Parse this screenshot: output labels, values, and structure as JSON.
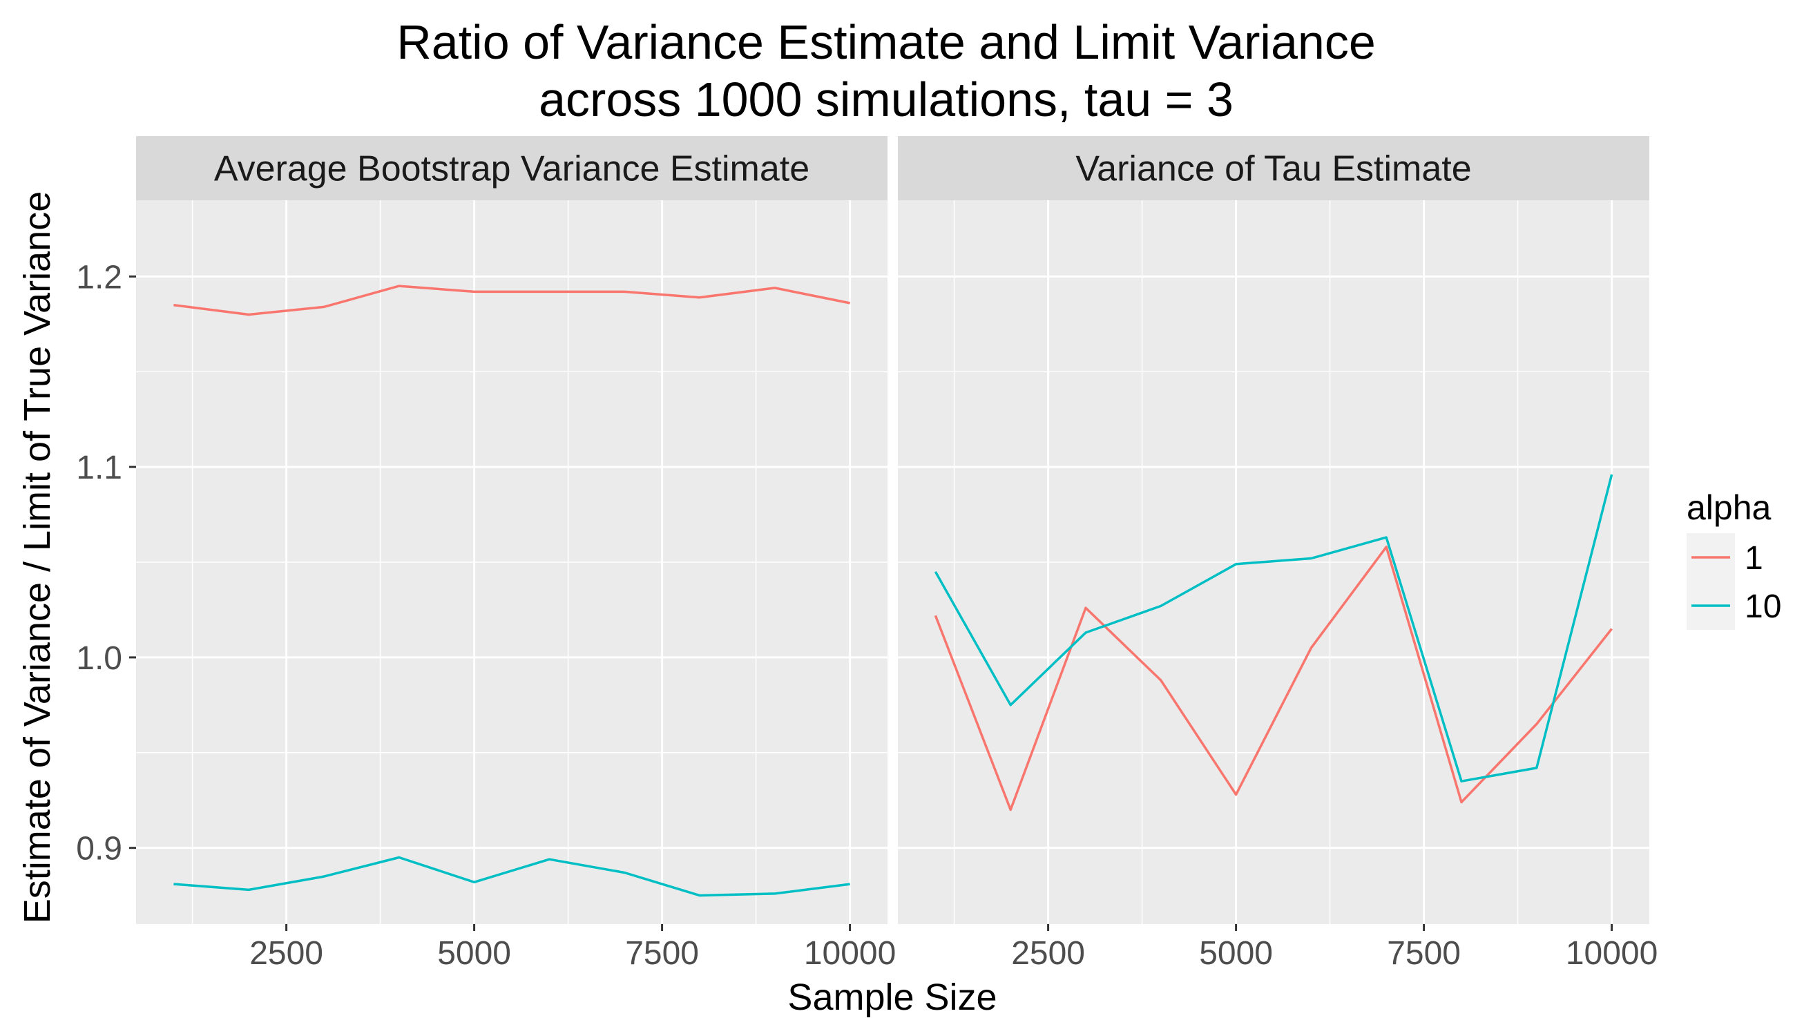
{
  "chart_data": {
    "type": "line",
    "title_line1": "Ratio of Variance Estimate and Limit Variance",
    "title_line2": "across 1000 simulations, tau = 3",
    "xlabel": "Sample Size",
    "ylabel": "Estimate of Variance / Limit of True Variance",
    "x_ticks": [
      2500,
      5000,
      7500,
      10000
    ],
    "x_tick_labels": [
      "2500",
      "5000",
      "7500",
      "10000"
    ],
    "y_ticks": [
      0.9,
      1.0,
      1.1,
      1.2
    ],
    "y_tick_labels": [
      "0.9",
      "1.0",
      "1.1",
      "1.2"
    ],
    "xlim": [
      500,
      10500
    ],
    "ylim": [
      0.86,
      1.24
    ],
    "grid": true,
    "legend": {
      "title": "alpha",
      "position": "right",
      "entries": [
        {
          "label": "1",
          "color": "#F8766D"
        },
        {
          "label": "10",
          "color": "#00BFC4"
        }
      ]
    },
    "colors": {
      "panel_bg": "#EBEBEB",
      "strip_bg": "#D9D9D9",
      "grid": "#FFFFFF"
    },
    "facets": [
      {
        "label": "Average Bootstrap Variance Estimate",
        "series": [
          {
            "name": "1",
            "x": [
              1000,
              2000,
              3000,
              4000,
              5000,
              6000,
              7000,
              8000,
              9000,
              10000
            ],
            "y": [
              1.185,
              1.18,
              1.184,
              1.195,
              1.192,
              1.192,
              1.192,
              1.189,
              1.194,
              1.186
            ]
          },
          {
            "name": "10",
            "x": [
              1000,
              2000,
              3000,
              4000,
              5000,
              6000,
              7000,
              8000,
              9000,
              10000
            ],
            "y": [
              0.881,
              0.878,
              0.885,
              0.895,
              0.882,
              0.894,
              0.887,
              0.875,
              0.876,
              0.881
            ]
          }
        ]
      },
      {
        "label": "Variance of Tau Estimate",
        "series": [
          {
            "name": "1",
            "x": [
              1000,
              2000,
              3000,
              4000,
              5000,
              6000,
              7000,
              8000,
              9000,
              10000
            ],
            "y": [
              1.022,
              0.92,
              1.026,
              0.988,
              0.928,
              1.005,
              1.058,
              0.924,
              0.965,
              1.015
            ]
          },
          {
            "name": "10",
            "x": [
              1000,
              2000,
              3000,
              4000,
              5000,
              6000,
              7000,
              8000,
              9000,
              10000
            ],
            "y": [
              1.045,
              0.975,
              1.013,
              1.027,
              1.049,
              1.052,
              1.063,
              0.935,
              0.942,
              1.096
            ]
          }
        ]
      }
    ]
  }
}
